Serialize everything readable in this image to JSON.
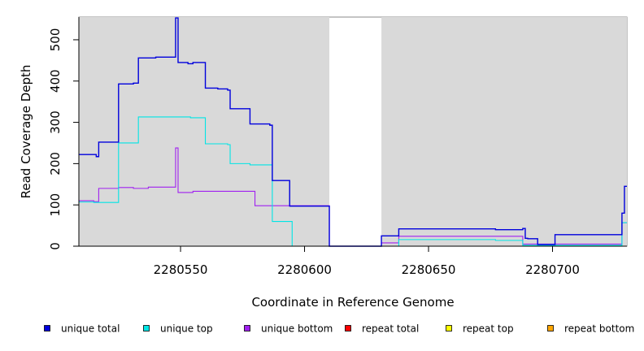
{
  "chart_data": {
    "type": "line",
    "title": "",
    "xlabel": "Coordinate in Reference Genome",
    "ylabel": "Read Coverage Depth",
    "xlim": [
      2280509,
      2280730
    ],
    "ylim": [
      0,
      555
    ],
    "x_ticks": [
      2280550,
      2280600,
      2280650,
      2280700
    ],
    "y_ticks": [
      0,
      100,
      200,
      300,
      400,
      500
    ],
    "x_tick_labels": [
      "2280550",
      "2280600",
      "2280650",
      "2280700"
    ],
    "y_tick_labels": [
      "0",
      "100",
      "200",
      "300",
      "400",
      "500"
    ],
    "grid": false,
    "legend_position": "bottom",
    "background_color": "#d9d9d9",
    "shaded_regions": [
      [
        2280509,
        2280610
      ],
      [
        2280631,
        2280730
      ]
    ],
    "series": [
      {
        "name": "unique total",
        "color": "#0000dd",
        "x": [
          2280509,
          2280516,
          2280517,
          2280525,
          2280531,
          2280533,
          2280540,
          2280548,
          2280549,
          2280553,
          2280555,
          2280560,
          2280565,
          2280569,
          2280570,
          2280578,
          2280586,
          2280587,
          2280594,
          2280610,
          2280631,
          2280638,
          2280677,
          2280688,
          2280689,
          2280690,
          2280694,
          2280700,
          2280701,
          2280728,
          2280729
        ],
        "y": [
          222,
          217,
          252,
          393,
          395,
          456,
          458,
          553,
          445,
          442,
          445,
          383,
          381,
          378,
          333,
          296,
          293,
          159,
          97,
          0,
          25,
          42,
          40,
          43,
          19,
          18,
          4,
          4,
          28,
          80,
          145
        ]
      },
      {
        "name": "unique top",
        "color": "#00e5e5",
        "x": [
          2280509,
          2280515,
          2280525,
          2280533,
          2280543,
          2280554,
          2280560,
          2280569,
          2280570,
          2280578,
          2280587,
          2280595,
          2280631,
          2280638,
          2280677,
          2280688,
          2280728
        ],
        "y": [
          107,
          106,
          250,
          313,
          313,
          311,
          248,
          246,
          200,
          197,
          60,
          0,
          0,
          16,
          14,
          2,
          57
        ]
      },
      {
        "name": "unique bottom",
        "color": "#a020f0",
        "x": [
          2280509,
          2280515,
          2280517,
          2280525,
          2280531,
          2280537,
          2280548,
          2280549,
          2280555,
          2280580,
          2280610,
          2280631,
          2280638,
          2280688,
          2280728
        ],
        "y": [
          110,
          108,
          140,
          142,
          140,
          143,
          238,
          130,
          133,
          98,
          0,
          8,
          24,
          5,
          57
        ]
      },
      {
        "name": "repeat total",
        "color": "#ff0000",
        "x": [
          2280509,
          2280730
        ],
        "y": [
          0,
          0
        ]
      },
      {
        "name": "repeat top",
        "color": "#ffff00",
        "x": [
          2280509,
          2280730
        ],
        "y": [
          0,
          0
        ]
      },
      {
        "name": "repeat bottom",
        "color": "#ffa500",
        "x": [
          2280509,
          2280730
        ],
        "y": [
          0,
          0
        ]
      }
    ]
  }
}
